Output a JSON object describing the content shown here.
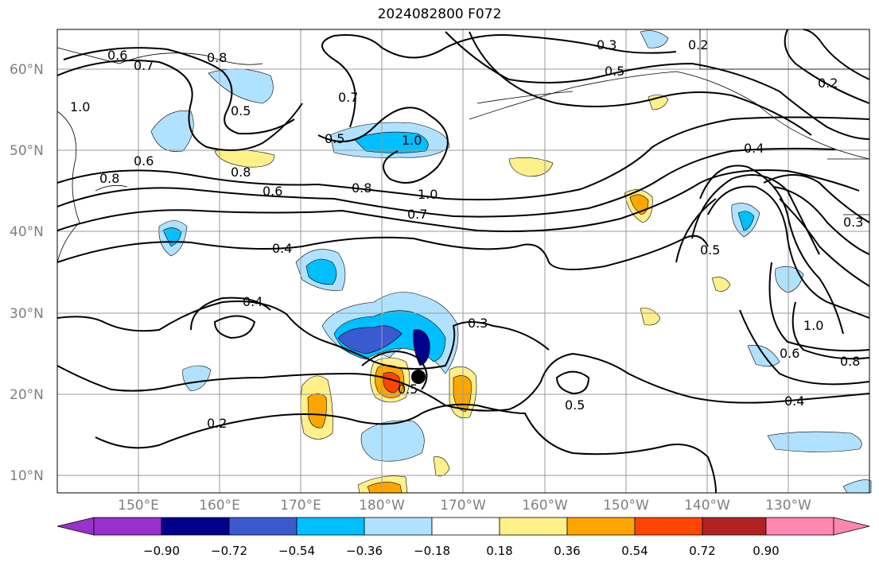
{
  "title": "2024082800 F072",
  "lat_labels": [
    "60°N",
    "50°N",
    "40°N",
    "30°N",
    "20°N",
    "10°N"
  ],
  "lon_labels": [
    "150°E",
    "160°E",
    "170°E",
    "180°W",
    "170°W",
    "160°W",
    "150°W",
    "140°W",
    "130°W"
  ],
  "contour_labels": [
    "0.2",
    "0.3",
    "0.4",
    "0.5",
    "0.6",
    "0.7",
    "0.8",
    "1.0"
  ],
  "colorbar": {
    "ticks": [
      "−0.90",
      "−0.72",
      "−0.54",
      "−0.36",
      "−0.18",
      "0.18",
      "0.36",
      "0.54",
      "0.72",
      "0.90"
    ],
    "colors": [
      "#9932cc",
      "#00008b",
      "#3a5bd0",
      "#00bfff",
      "#b0e2ff",
      "#ffffff",
      "#fff08a",
      "#ffa500",
      "#ff4500",
      "#b22222",
      "#ff88b0"
    ]
  },
  "storm_marker": "tropical cyclone center"
}
